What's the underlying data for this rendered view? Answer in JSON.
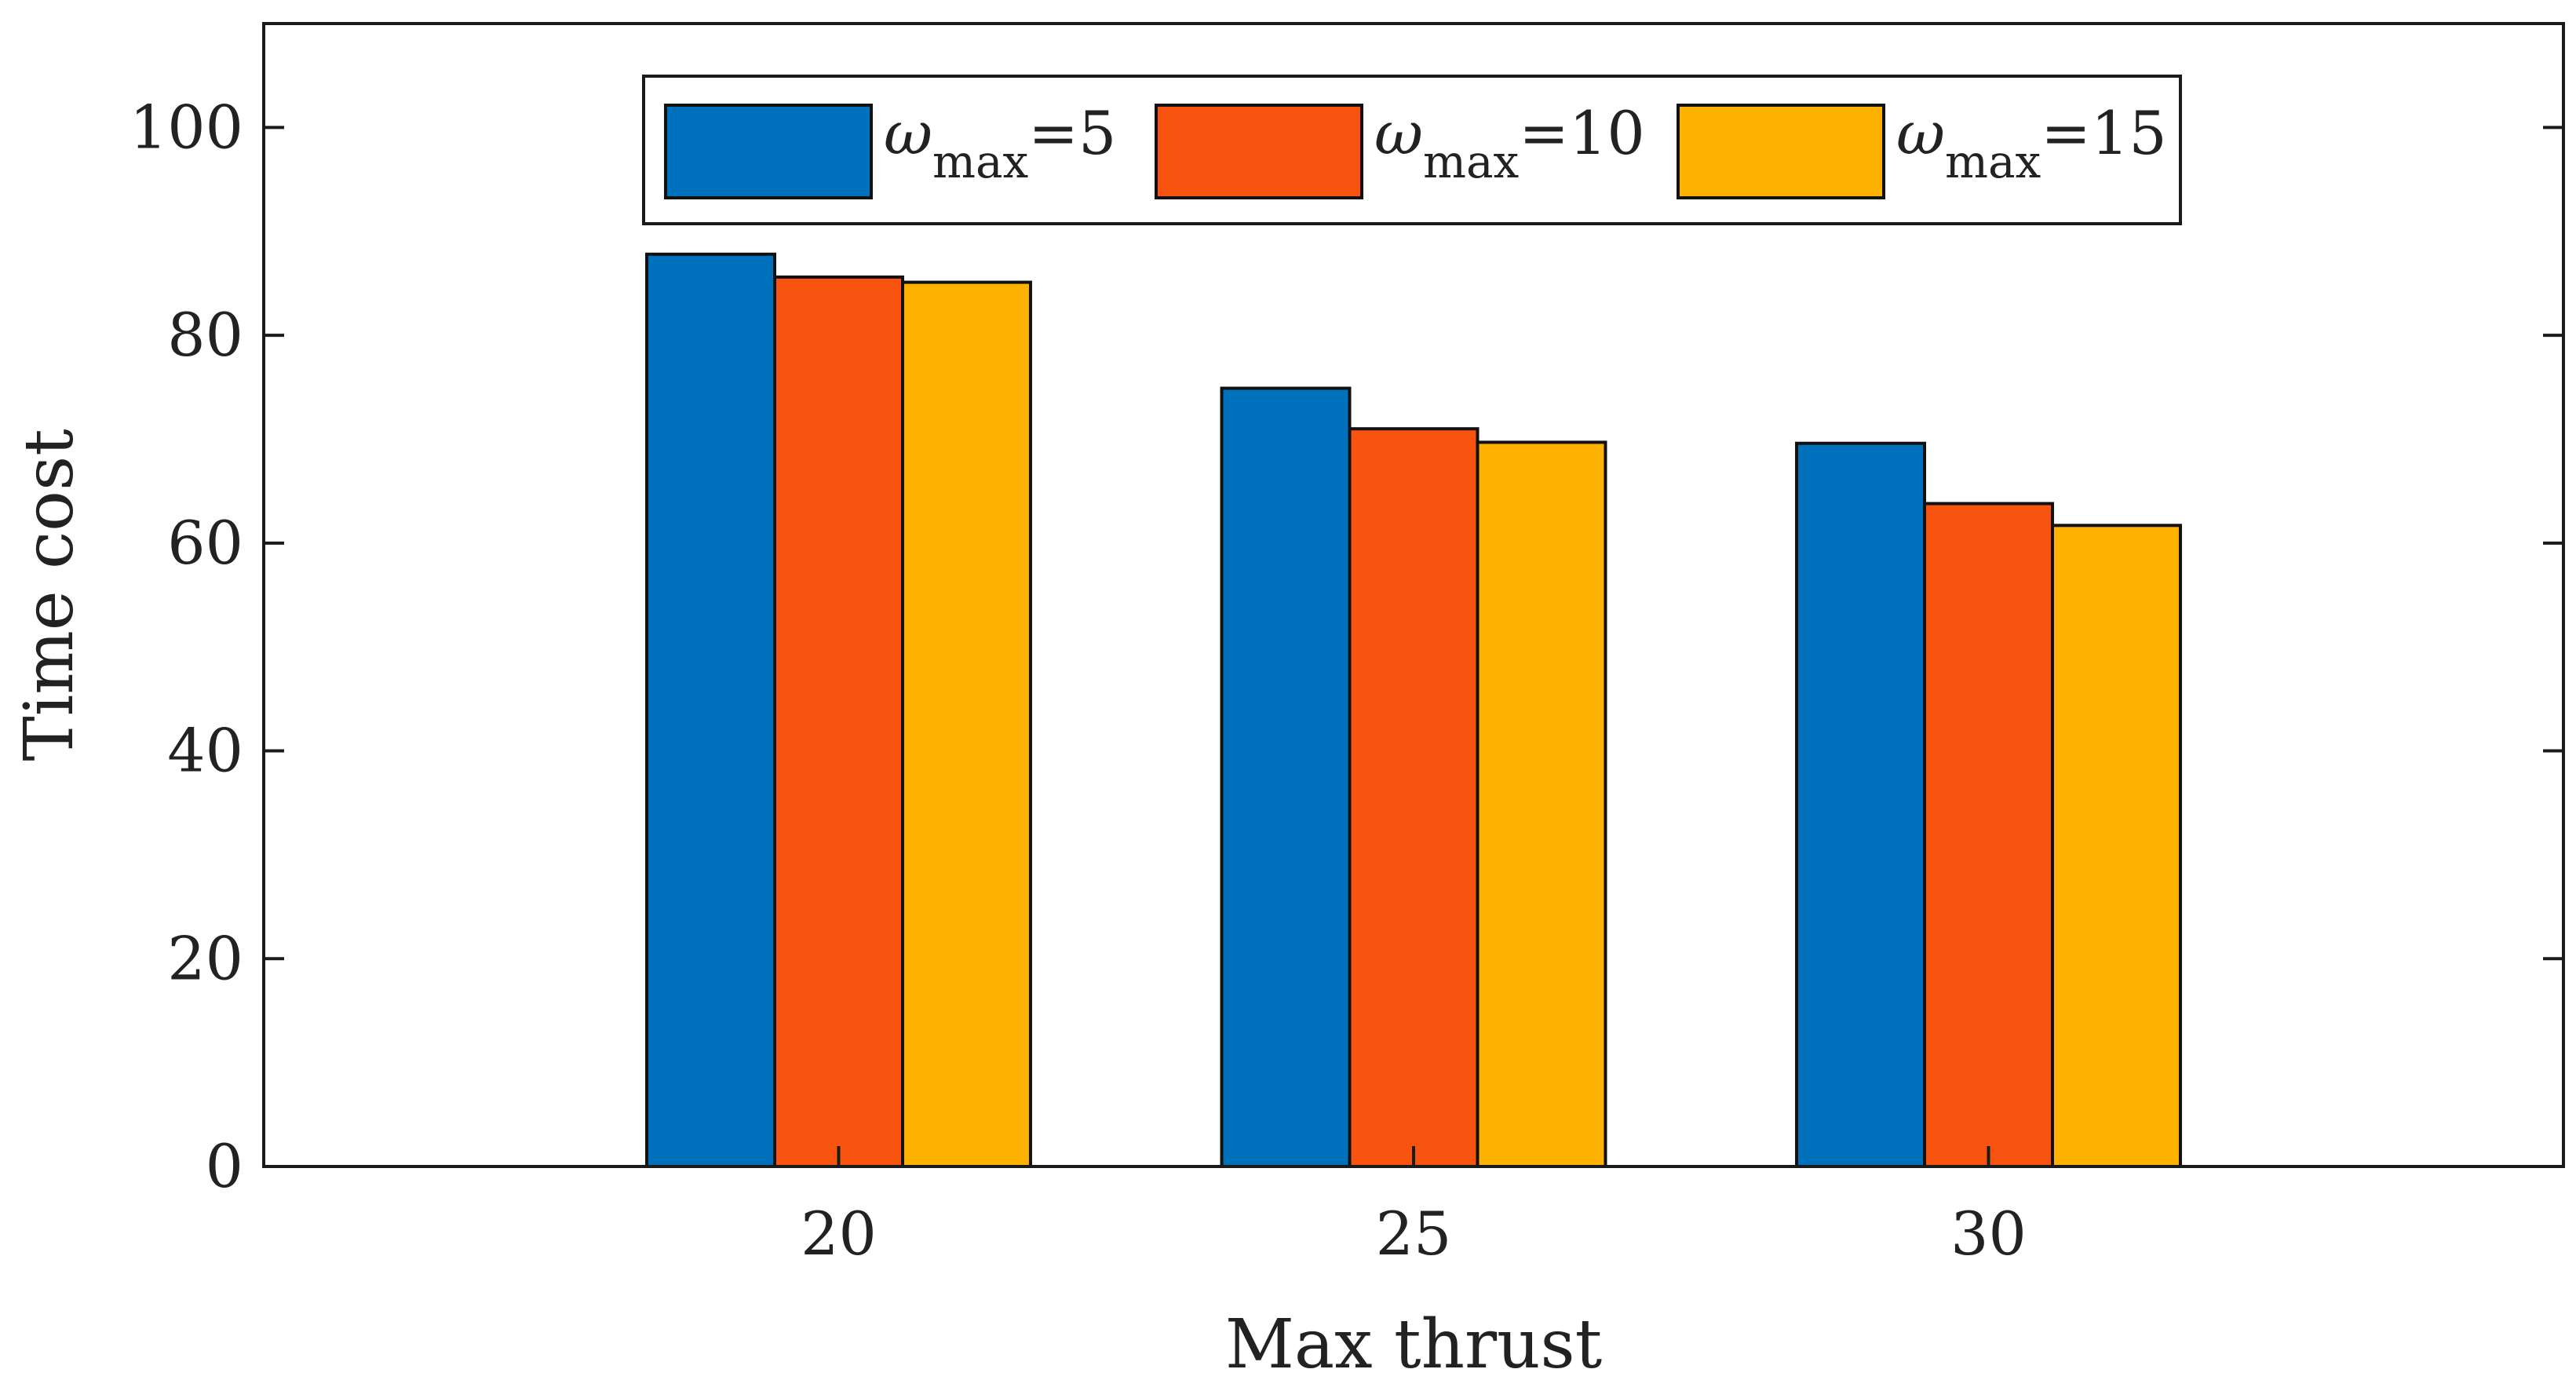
{
  "chart_data": {
    "type": "bar",
    "xlabel": "Max thrust",
    "ylabel": "Time cost",
    "categories": [
      "20",
      "25",
      "30"
    ],
    "ylim": [
      0,
      110
    ],
    "yticks": [
      0,
      20,
      40,
      60,
      80,
      100
    ],
    "grid": false,
    "legend_position": "top-center",
    "series": [
      {
        "name": "ω_max=5",
        "symbol": "ω",
        "subscript": "max",
        "suffix": "=5",
        "color": "#0072BD",
        "values": [
          87.8,
          74.9,
          69.6
        ]
      },
      {
        "name": "ω_max=10",
        "symbol": "ω",
        "subscript": "max",
        "suffix": "=10",
        "color": "#F9540F",
        "values": [
          85.6,
          71.0,
          63.8
        ]
      },
      {
        "name": "ω_max=15",
        "symbol": "ω",
        "subscript": "max",
        "suffix": "=15",
        "color": "#FDB100",
        "values": [
          85.1,
          69.7,
          61.7
        ]
      }
    ]
  }
}
